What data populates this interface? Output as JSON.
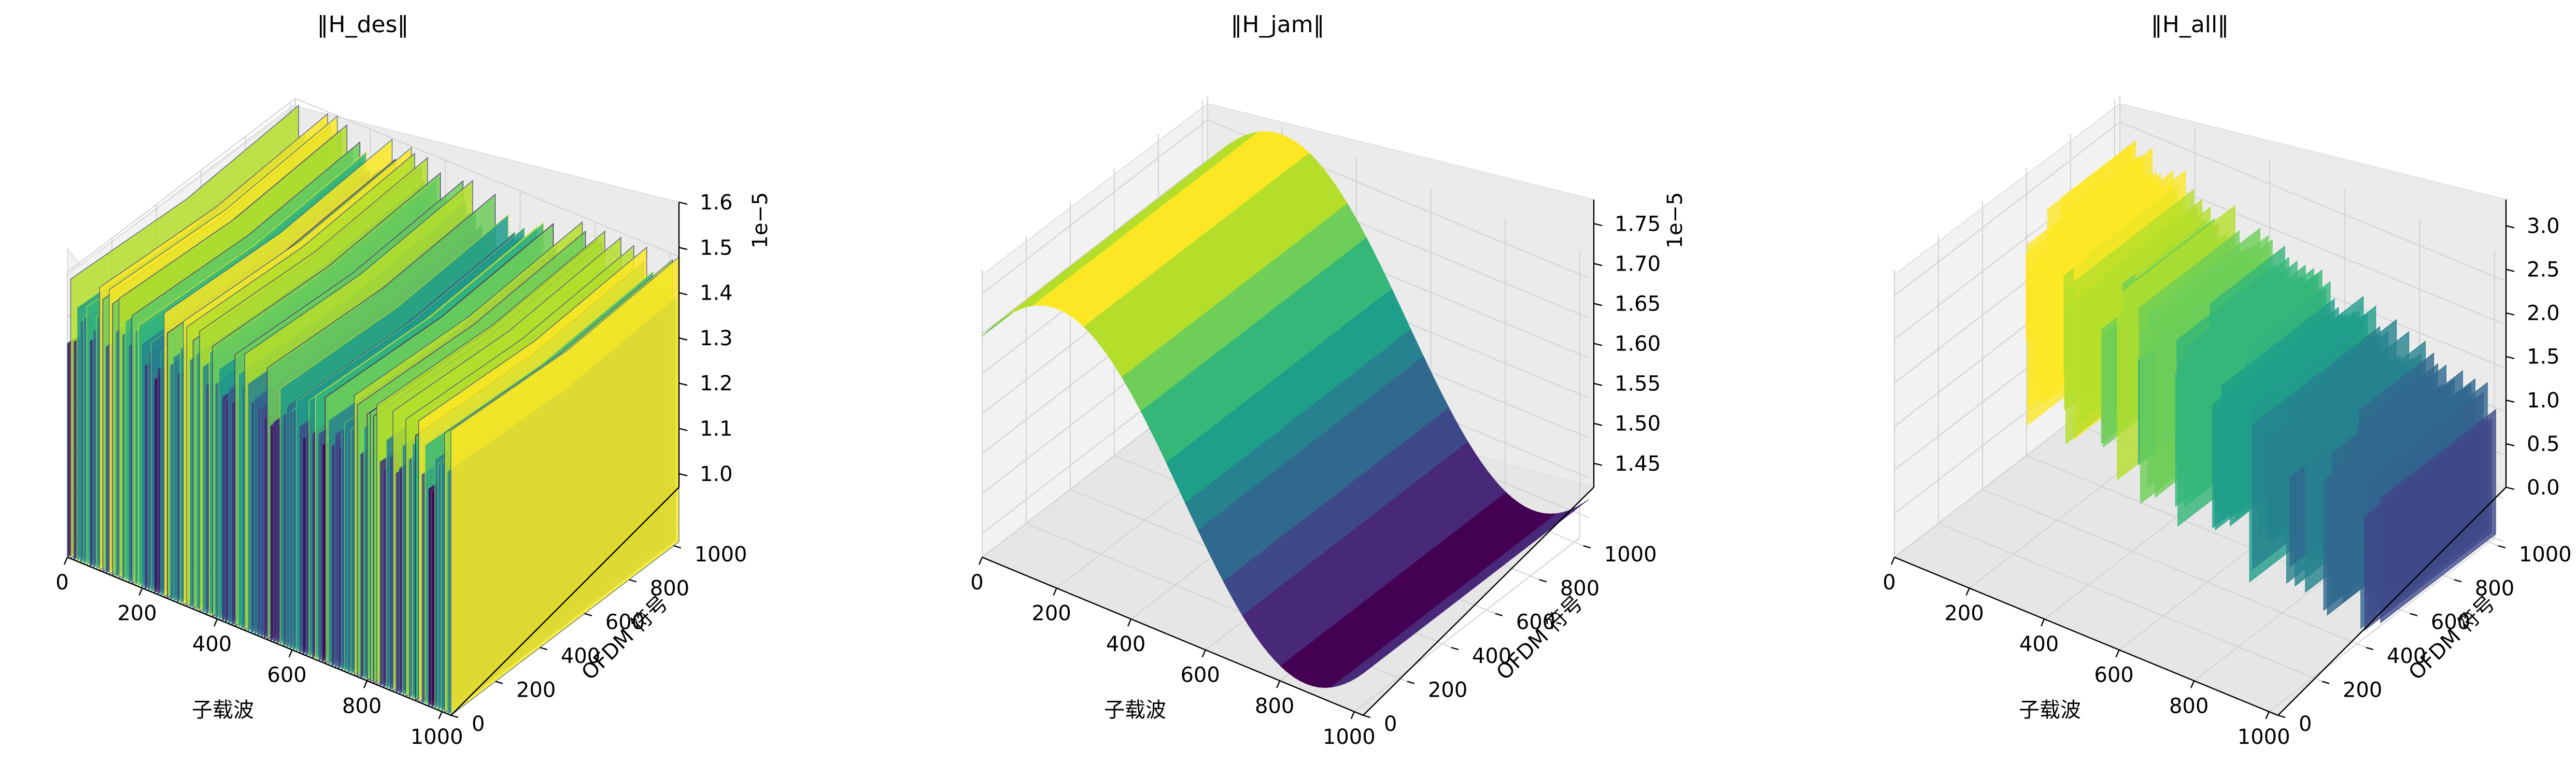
{
  "chart_data": [
    {
      "type": "surface",
      "title": "‖H_des‖",
      "xlabel": "子载波",
      "ylabel": "OFDM 符号",
      "zlabel": "",
      "z_offset_text": "1e−5",
      "x_ticks": [
        "0",
        "200",
        "400",
        "600",
        "800",
        "1000"
      ],
      "y_ticks": [
        "0",
        "200",
        "400",
        "600",
        "800",
        "1000"
      ],
      "z_ticks": [
        "1.0",
        "1.1",
        "1.2",
        "1.3",
        "1.4",
        "1.5",
        "1.6"
      ],
      "x_range": [
        0,
        1024
      ],
      "y_range": [
        0,
        1024
      ],
      "z_range": [
        0.97,
        1.6
      ],
      "surface_description": "rapidly oscillating in subcarrier direction, constant along OFDM symbols",
      "colormap": "viridis"
    },
    {
      "type": "surface",
      "title": "‖H_jam‖",
      "xlabel": "子载波",
      "ylabel": "OFDM 符号",
      "zlabel": "",
      "z_offset_text": "1e−5",
      "x_ticks": [
        "0",
        "200",
        "400",
        "600",
        "800",
        "1000"
      ],
      "y_ticks": [
        "0",
        "200",
        "400",
        "600",
        "800",
        "1000"
      ],
      "z_ticks": [
        "1.45",
        "1.50",
        "1.55",
        "1.60",
        "1.65",
        "1.70",
        "1.75"
      ],
      "x_range": [
        0,
        1024
      ],
      "y_range": [
        0,
        1024
      ],
      "z_range": [
        1.42,
        1.78
      ],
      "surface_description": "smooth sinusoid along subcarriers, peak ~1.77 near subcarrier 200, trough ~1.43 near 850",
      "colormap": "viridis"
    },
    {
      "type": "surface",
      "title": "‖H_all‖",
      "xlabel": "子载波",
      "ylabel": "OFDM 符号",
      "zlabel": "",
      "z_offset_text": "",
      "x_ticks": [
        "0",
        "200",
        "400",
        "600",
        "800",
        "1000"
      ],
      "y_ticks": [
        "0",
        "200",
        "400",
        "600",
        "800",
        "1000"
      ],
      "z_ticks": [
        "0.0",
        "0.5",
        "1.0",
        "1.5",
        "2.0",
        "2.5",
        "3.0"
      ],
      "x_range": [
        0,
        1024
      ],
      "y_range": [
        0,
        1024
      ],
      "z_range": [
        0,
        3.3
      ],
      "surface_description": "spiky oscillating surface with decreasing trend along subcarriers",
      "colormap": "viridis"
    }
  ]
}
